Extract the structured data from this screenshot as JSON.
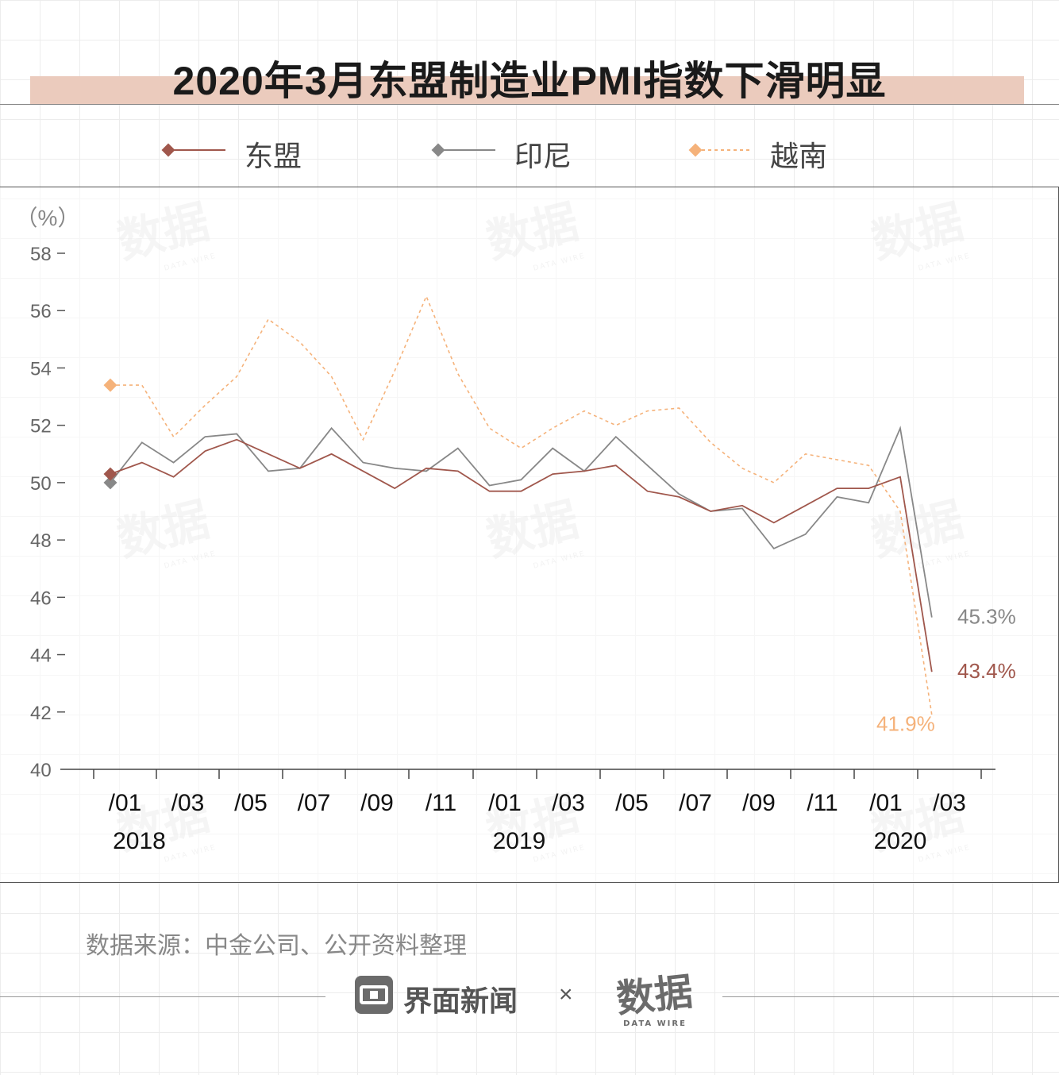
{
  "title": "2020年3月东盟制造业PMI指数下滑明显",
  "legend": [
    {
      "name": "东盟",
      "color": "#a0574c",
      "dashed": false
    },
    {
      "name": "印尼",
      "color": "#888888",
      "dashed": false
    },
    {
      "name": "越南",
      "color": "#f5b27a",
      "dashed": true
    }
  ],
  "unit": "（%）",
  "source": "数据来源：中金公司、公开资料整理",
  "brand": {
    "name": "界面新闻",
    "times": "×",
    "partner": "数据",
    "partner_sub": "DATA WIRE"
  },
  "watermark": {
    "text": "数据",
    "sub": "DATA WIRE"
  },
  "chart_data": {
    "type": "line",
    "title": "2020年3月东盟制造业PMI指数下滑明显",
    "ylabel": "（%）",
    "xlabel": "",
    "ylim": [
      40,
      58
    ],
    "yticks": [
      40,
      42,
      44,
      46,
      48,
      50,
      52,
      54,
      56,
      58
    ],
    "x": [
      "2018/01",
      "2018/02",
      "2018/03",
      "2018/04",
      "2018/05",
      "2018/06",
      "2018/07",
      "2018/08",
      "2018/09",
      "2018/10",
      "2018/11",
      "2018/12",
      "2019/01",
      "2019/02",
      "2019/03",
      "2019/04",
      "2019/05",
      "2019/06",
      "2019/07",
      "2019/08",
      "2019/09",
      "2019/10",
      "2019/11",
      "2019/12",
      "2020/01",
      "2020/02",
      "2020/03"
    ],
    "tick_labels": [
      "/01",
      "/03",
      "/05",
      "/07",
      "/09",
      "/11",
      "/01",
      "/03",
      "/05",
      "/07",
      "/09",
      "/11",
      "/01",
      "/03"
    ],
    "tick_index": [
      0,
      2,
      4,
      6,
      8,
      10,
      12,
      14,
      16,
      18,
      20,
      22,
      24,
      26
    ],
    "year_labels": [
      {
        "label": "2018",
        "index": 0
      },
      {
        "label": "2019",
        "index": 12
      },
      {
        "label": "2020",
        "index": 24
      }
    ],
    "series": [
      {
        "name": "东盟",
        "color": "#a0574c",
        "end_label": "43.4%",
        "values": [
          50.3,
          50.7,
          50.2,
          51.1,
          51.5,
          51.0,
          50.5,
          51.0,
          50.4,
          49.8,
          50.5,
          50.4,
          49.7,
          49.7,
          50.3,
          50.4,
          50.6,
          49.7,
          49.5,
          49.0,
          49.2,
          48.6,
          49.2,
          49.8,
          49.8,
          50.2,
          43.4
        ]
      },
      {
        "name": "印尼",
        "color": "#888888",
        "end_label": "45.3%",
        "values": [
          50.0,
          51.4,
          50.7,
          51.6,
          51.7,
          50.4,
          50.5,
          51.9,
          50.7,
          50.5,
          50.4,
          51.2,
          49.9,
          50.1,
          51.2,
          50.4,
          51.6,
          50.6,
          49.6,
          49.0,
          49.1,
          47.7,
          48.2,
          49.5,
          49.3,
          51.9,
          45.3
        ]
      },
      {
        "name": "越南",
        "color": "#f5b27a",
        "end_label": "41.9%",
        "values": [
          53.4,
          53.4,
          51.6,
          52.7,
          53.7,
          55.7,
          54.9,
          53.7,
          51.5,
          53.9,
          56.5,
          53.8,
          51.9,
          51.2,
          51.9,
          52.5,
          52.0,
          52.5,
          52.6,
          51.4,
          50.5,
          50.0,
          51.0,
          50.8,
          50.6,
          49.0,
          41.9
        ]
      }
    ],
    "grid": false,
    "legend_position": "top"
  }
}
